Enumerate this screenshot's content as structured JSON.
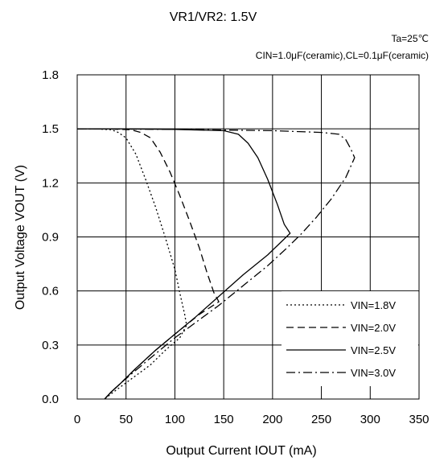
{
  "chart_data": {
    "type": "line",
    "title": "VR1/VR2: 1.5V",
    "conditions": [
      "Ta=25℃",
      "CIN=1.0μF(ceramic),CL=0.1μF(ceramic)"
    ],
    "xlabel": "Output Current IOUT (mA)",
    "ylabel": "Output Voltage VOUT (V)",
    "xlim": [
      0,
      350
    ],
    "ylim": [
      0,
      1.8
    ],
    "xticks": [
      "0",
      "50",
      "100",
      "150",
      "200",
      "250",
      "300",
      "350"
    ],
    "yticks": [
      "0.0",
      "0.3",
      "0.6",
      "0.9",
      "1.2",
      "1.5",
      "1.8"
    ],
    "grid": true,
    "legend_position": "bottom-right",
    "series": [
      {
        "name": "VIN=1.8V",
        "style": "dotted",
        "x": [
          0,
          20,
          35,
          42,
          50,
          60,
          70,
          80,
          90,
          100,
          105,
          110,
          112,
          105,
          90,
          75,
          60,
          45,
          35,
          28
        ],
        "y": [
          1.5,
          1.5,
          1.495,
          1.48,
          1.45,
          1.36,
          1.22,
          1.07,
          0.9,
          0.72,
          0.59,
          0.47,
          0.41,
          0.34,
          0.27,
          0.19,
          0.13,
          0.07,
          0.03,
          0.0
        ]
      },
      {
        "name": "VIN=2.0V",
        "style": "dashed",
        "x": [
          0,
          30,
          55,
          65,
          75,
          85,
          95,
          105,
          115,
          125,
          133,
          140,
          145,
          125,
          100,
          80,
          60,
          45,
          35,
          28
        ],
        "y": [
          1.5,
          1.5,
          1.495,
          1.48,
          1.45,
          1.37,
          1.26,
          1.13,
          0.99,
          0.84,
          0.7,
          0.59,
          0.54,
          0.47,
          0.36,
          0.27,
          0.17,
          0.09,
          0.04,
          0.0
        ]
      },
      {
        "name": "VIN=2.5V",
        "style": "solid",
        "x": [
          0,
          50,
          100,
          150,
          165,
          175,
          185,
          195,
          205,
          212,
          218,
          195,
          170,
          145,
          120,
          100,
          80,
          60,
          45,
          35,
          28
        ],
        "y": [
          1.5,
          1.5,
          1.497,
          1.49,
          1.47,
          1.42,
          1.34,
          1.22,
          1.08,
          0.97,
          0.92,
          0.8,
          0.69,
          0.57,
          0.45,
          0.36,
          0.27,
          0.17,
          0.09,
          0.04,
          0.0
        ]
      },
      {
        "name": "VIN=3.0V",
        "style": "dash-dot",
        "x": [
          0,
          100,
          200,
          250,
          268,
          275,
          280,
          284,
          275,
          260,
          245,
          230,
          215,
          195,
          170,
          145,
          120,
          100,
          80,
          60,
          45,
          35,
          28
        ],
        "y": [
          1.5,
          1.497,
          1.49,
          1.48,
          1.47,
          1.44,
          1.39,
          1.34,
          1.23,
          1.11,
          1.01,
          0.92,
          0.84,
          0.74,
          0.63,
          0.52,
          0.42,
          0.34,
          0.25,
          0.16,
          0.09,
          0.04,
          0.0
        ]
      }
    ]
  }
}
